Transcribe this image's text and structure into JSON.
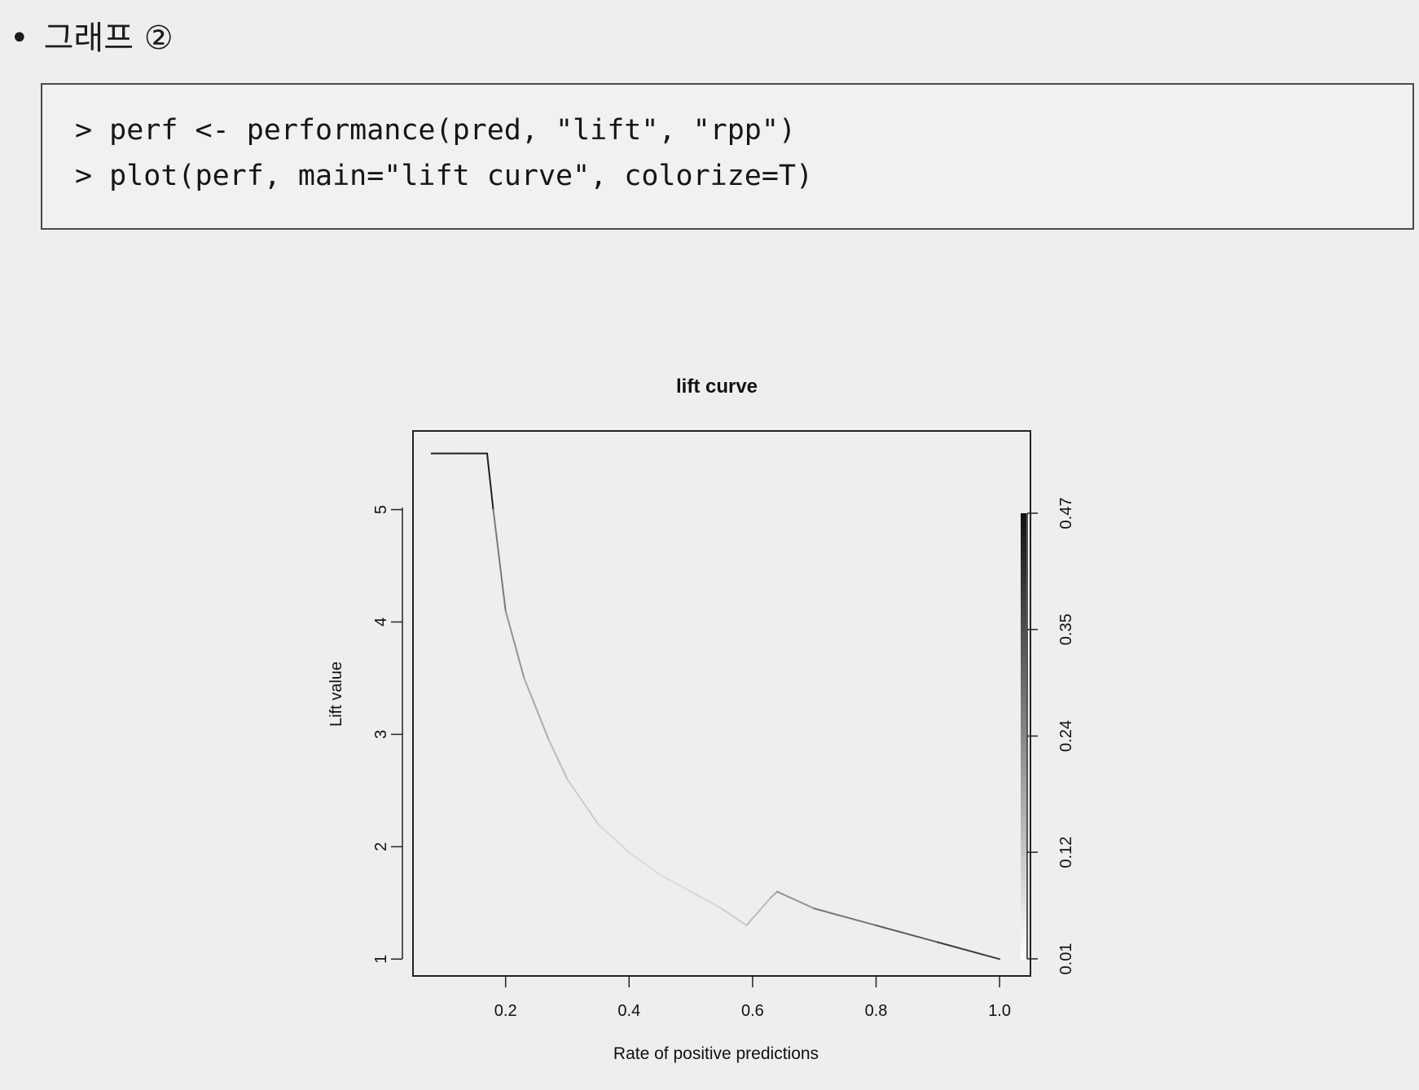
{
  "heading": {
    "bullet": "•",
    "text": "그래프 ②"
  },
  "code": {
    "lines": [
      "> perf <- performance(pred, \"lift\", \"rpp\")",
      "> plot(perf, main=\"lift curve\", colorize=T)"
    ]
  },
  "chart_data": {
    "type": "line",
    "title": "lift curve",
    "xlabel": "Rate of positive predictions",
    "ylabel": "Lift value",
    "xlim": [
      0.05,
      1.05
    ],
    "ylim": [
      0.85,
      5.7
    ],
    "xticks": [
      0.2,
      0.4,
      0.6,
      0.8,
      1.0
    ],
    "xtick_labels": [
      "0.2",
      "0.4",
      "0.6",
      "0.8",
      "1.0"
    ],
    "yticks": [
      1,
      2,
      3,
      4,
      5
    ],
    "ytick_labels": [
      "1",
      "2",
      "3",
      "4",
      "5"
    ],
    "series": [
      {
        "x": [
          0.08,
          0.13,
          0.17,
          0.18,
          0.2,
          0.23,
          0.27,
          0.3,
          0.35,
          0.4,
          0.45,
          0.5,
          0.55,
          0.59,
          0.63,
          0.64,
          0.7,
          0.8,
          0.9,
          1.0
        ],
        "y": [
          5.5,
          5.5,
          5.5,
          5.0,
          4.1,
          3.5,
          2.95,
          2.6,
          2.2,
          1.95,
          1.75,
          1.6,
          1.45,
          1.3,
          1.55,
          1.6,
          1.45,
          1.3,
          1.15,
          1.0
        ]
      }
    ],
    "colorbar": {
      "ticks": [
        0.01,
        0.12,
        0.24,
        0.35,
        0.47
      ],
      "tick_labels": [
        "0.01",
        "0.12",
        "0.24",
        "0.35",
        "0.47"
      ],
      "range": [
        0.01,
        0.47
      ]
    },
    "grid": false,
    "legend": "none"
  }
}
